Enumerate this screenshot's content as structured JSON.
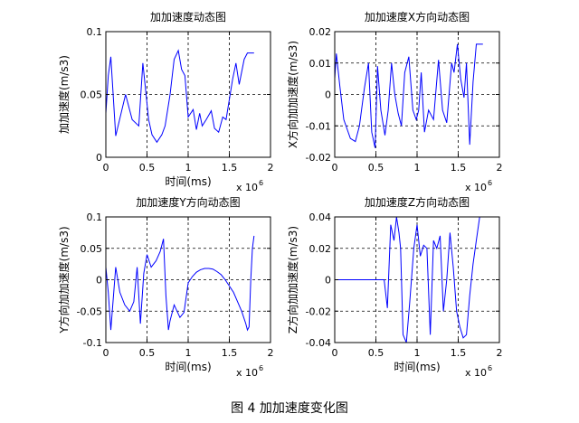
{
  "figure": {
    "caption": "图 4  加加速度变化图"
  },
  "chart_data": [
    {
      "type": "line",
      "title": "加加速度动态图",
      "xlabel": "时间(ms)",
      "ylabel": "加加速度(m/s3)",
      "x_exponent_label": "x 10",
      "x_exponent": "6",
      "xlim": [
        0,
        2000000
      ],
      "ylim": [
        0,
        0.1
      ],
      "x_ticks": [
        0,
        500000,
        1000000,
        1500000,
        2000000
      ],
      "x_tick_labels": [
        "0",
        "0.5",
        "1",
        "1.5",
        "2"
      ],
      "y_ticks": [
        0,
        0.05,
        0.1
      ],
      "y_tick_labels": [
        "0",
        "0.05",
        "0.1"
      ],
      "grid": true,
      "color": "#0000ff",
      "series": [
        {
          "x": [
            0,
            30000,
            60000,
            120000,
            240000,
            320000,
            400000,
            450000,
            520000,
            560000,
            620000,
            680000,
            720000,
            780000,
            830000,
            880000,
            920000,
            960000,
            1000000,
            1060000,
            1100000,
            1140000,
            1170000,
            1220000,
            1280000,
            1320000,
            1370000,
            1420000,
            1460000,
            1510000,
            1540000,
            1580000,
            1620000,
            1680000,
            1720000,
            1760000,
            1800000
          ],
          "y": [
            0.035,
            0.065,
            0.08,
            0.017,
            0.05,
            0.03,
            0.025,
            0.075,
            0.03,
            0.018,
            0.012,
            0.018,
            0.025,
            0.05,
            0.078,
            0.085,
            0.07,
            0.065,
            0.032,
            0.038,
            0.022,
            0.035,
            0.025,
            0.03,
            0.037,
            0.023,
            0.02,
            0.032,
            0.03,
            0.05,
            0.062,
            0.075,
            0.058,
            0.078,
            0.083,
            0.083,
            0.083
          ]
        }
      ]
    },
    {
      "type": "line",
      "title": "加加速度X方向动态图",
      "xlabel": "",
      "ylabel": "X方向加加速度(m/s3)",
      "x_exponent_label": "x 10",
      "x_exponent": "6",
      "xlim": [
        0,
        2000000
      ],
      "ylim": [
        -0.02,
        0.02
      ],
      "x_ticks": [
        0,
        500000,
        1000000,
        1500000,
        2000000
      ],
      "x_tick_labels": [
        "0",
        "0.5",
        "1",
        "1.5",
        "2"
      ],
      "y_ticks": [
        -0.02,
        -0.01,
        0,
        0.01,
        0.02
      ],
      "y_tick_labels": [
        "-0.02",
        "-0.01",
        "0",
        "0.01",
        "0.02"
      ],
      "grid": true,
      "color": "#0000ff",
      "series": [
        {
          "x": [
            0,
            20000,
            60000,
            110000,
            190000,
            250000,
            300000,
            360000,
            410000,
            450000,
            490000,
            520000,
            560000,
            610000,
            650000,
            690000,
            730000,
            770000,
            810000,
            850000,
            900000,
            950000,
            990000,
            1020000,
            1050000,
            1090000,
            1140000,
            1200000,
            1260000,
            1310000,
            1360000,
            1420000,
            1450000,
            1490000,
            1530000,
            1570000,
            1600000,
            1640000,
            1680000,
            1720000,
            1760000,
            1800000
          ],
          "y": [
            0.005,
            0.013,
            0.003,
            -0.008,
            -0.014,
            -0.015,
            -0.01,
            0.002,
            0.01,
            -0.012,
            -0.017,
            0.009,
            -0.005,
            -0.013,
            -0.005,
            0.01,
            0.0,
            -0.006,
            -0.01,
            0.007,
            0.012,
            -0.005,
            -0.008,
            -0.005,
            0.007,
            -0.012,
            -0.005,
            -0.008,
            0.011,
            -0.005,
            -0.009,
            0.01,
            0.007,
            0.016,
            0.005,
            -0.001,
            0.01,
            -0.016,
            0.004,
            0.016,
            0.016,
            0.016
          ]
        }
      ]
    },
    {
      "type": "line",
      "title": "加加速度Y方向动态图",
      "xlabel": "时间(ms)",
      "ylabel": "Y方向加加速度(m/s3)",
      "x_exponent_label": "x 10",
      "x_exponent": "6",
      "xlim": [
        0,
        2000000
      ],
      "ylim": [
        -0.1,
        0.1
      ],
      "x_ticks": [
        0,
        500000,
        1000000,
        1500000,
        2000000
      ],
      "x_tick_labels": [
        "0",
        "0.5",
        "1",
        "1.5",
        "2"
      ],
      "y_ticks": [
        -0.1,
        -0.05,
        0,
        0.05,
        0.1
      ],
      "y_tick_labels": [
        "-0.1",
        "-0.05",
        "0",
        "0.05",
        "0.1"
      ],
      "grid": true,
      "color": "#0000ff",
      "series": [
        {
          "x": [
            0,
            30000,
            60000,
            120000,
            170000,
            230000,
            290000,
            340000,
            380000,
            420000,
            460000,
            500000,
            550000,
            610000,
            660000,
            700000,
            730000,
            760000,
            780000,
            830000,
            900000,
            950000,
            1000000,
            1050000,
            1100000,
            1150000,
            1200000,
            1250000,
            1300000,
            1350000,
            1400000,
            1450000,
            1500000,
            1550000,
            1600000,
            1650000,
            1700000,
            1720000,
            1740000,
            1760000,
            1780000,
            1800000
          ],
          "y": [
            0.02,
            -0.02,
            -0.08,
            0.02,
            -0.02,
            -0.04,
            -0.05,
            -0.035,
            0.02,
            -0.07,
            0.01,
            0.04,
            0.02,
            0.03,
            0.045,
            0.065,
            -0.025,
            -0.08,
            -0.065,
            -0.04,
            -0.06,
            -0.052,
            -0.005,
            0.005,
            0.012,
            0.016,
            0.018,
            0.018,
            0.017,
            0.013,
            0.008,
            0.0,
            -0.01,
            -0.02,
            -0.035,
            -0.05,
            -0.07,
            -0.08,
            -0.075,
            0.0,
            0.05,
            0.07
          ]
        }
      ]
    },
    {
      "type": "line",
      "title": "加加速度Z方向动态图",
      "xlabel": "时间(ms)",
      "ylabel": "Z方向加加速度(m/s3)",
      "x_exponent_label": "x 10",
      "x_exponent": "6",
      "xlim": [
        0,
        2000000
      ],
      "ylim": [
        -0.04,
        0.04
      ],
      "x_ticks": [
        0,
        500000,
        1000000,
        1500000,
        2000000
      ],
      "x_tick_labels": [
        "0",
        "0.5",
        "1",
        "1.5",
        "2"
      ],
      "y_ticks": [
        -0.04,
        -0.02,
        0,
        0.02,
        0.04
      ],
      "y_tick_labels": [
        "-0.04",
        "-0.02",
        "0",
        "0.02",
        "0.04"
      ],
      "grid": true,
      "color": "#0000ff",
      "series": [
        {
          "x": [
            0,
            600000,
            640000,
            680000,
            720000,
            750000,
            780000,
            800000,
            830000,
            870000,
            910000,
            960000,
            1000000,
            1040000,
            1080000,
            1120000,
            1160000,
            1200000,
            1240000,
            1280000,
            1320000,
            1360000,
            1400000,
            1440000,
            1480000,
            1520000,
            1560000,
            1600000,
            1640000,
            1680000,
            1720000,
            1760000,
            1800000
          ],
          "y": [
            0,
            0,
            -0.018,
            0.035,
            0.025,
            0.04,
            0.03,
            0.02,
            -0.035,
            -0.04,
            -0.015,
            0.02,
            0.035,
            0.015,
            0.022,
            0.02,
            -0.035,
            0.025,
            0.02,
            0.028,
            -0.02,
            0.0,
            0.03,
            0.008,
            -0.02,
            -0.03,
            -0.037,
            -0.035,
            -0.01,
            0.01,
            0.025,
            0.04,
            0.04
          ]
        }
      ]
    }
  ]
}
